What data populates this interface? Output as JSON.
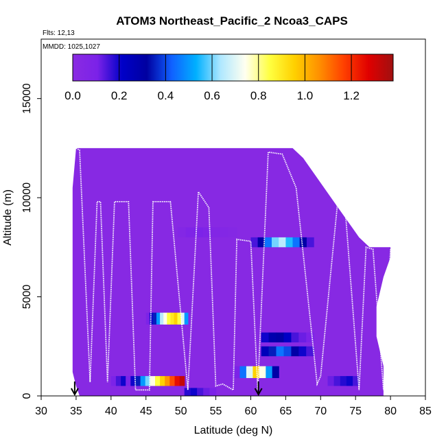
{
  "chart_data": {
    "type": "heatmap",
    "title": "ATOM3 Northeast_Pacific_2 Ncoa3_CAPS",
    "flights_label": "Flts: 12,13",
    "dates_label": "MMDD: 1025,1027",
    "xlabel": "Latitude (deg N)",
    "ylabel": "Altitude (m)",
    "xlim": [
      30,
      85
    ],
    "ylim": [
      0,
      18000
    ],
    "xticks": [
      30,
      35,
      40,
      45,
      50,
      55,
      60,
      65,
      70,
      75,
      80,
      85
    ],
    "yticks": [
      0,
      5000,
      10000,
      15000
    ],
    "colorbar": {
      "range": [
        0,
        1.38
      ],
      "ticks": [
        "0.0",
        "0.2",
        "0.4",
        "0.6",
        "0.8",
        "1.0",
        "1.2"
      ],
      "tick_values": [
        0,
        0.2,
        0.4,
        0.6,
        0.8,
        1.0,
        1.2
      ],
      "colors": [
        "#8a2be2",
        "#7b22e8",
        "#0000c8",
        "#0000a0",
        "#1060ff",
        "#00b0ff",
        "#b0e8ff",
        "#fffff0",
        "#ffff40",
        "#ffd000",
        "#ff9000",
        "#ff4000",
        "#e00000",
        "#a01010"
      ]
    },
    "background_value": 0.02,
    "envelope": [
      [
        35.0,
        12500
      ],
      [
        39.0,
        12500
      ],
      [
        39.0,
        12500
      ],
      [
        43.0,
        12500
      ],
      [
        47.0,
        12500
      ],
      [
        51.0,
        12500
      ],
      [
        55.0,
        12500
      ],
      [
        58.0,
        12500
      ],
      [
        62.0,
        12500
      ],
      [
        66.0,
        12500
      ],
      [
        67.5,
        12000
      ],
      [
        68.5,
        11500
      ],
      [
        69.5,
        11000
      ],
      [
        70.5,
        10500
      ],
      [
        71.5,
        10000
      ],
      [
        72.5,
        9500
      ],
      [
        73.5,
        9000
      ],
      [
        74.5,
        8500
      ],
      [
        75.5,
        8000
      ],
      [
        77.0,
        7500
      ],
      [
        80.0,
        7500
      ],
      [
        80.0,
        7000
      ],
      [
        79.0,
        6000
      ],
      [
        78.0,
        4500
      ],
      [
        78.0,
        3000
      ],
      [
        79.0,
        1500
      ],
      [
        79.0,
        0
      ],
      [
        35.5,
        0
      ],
      [
        35.0,
        500
      ],
      [
        34.5,
        1200
      ],
      [
        34.5,
        10500
      ]
    ],
    "features": [
      {
        "lat": [
          45.0,
          51.0
        ],
        "alt": [
          3600,
          4200
        ],
        "values": [
          0.1,
          0.2,
          0.35,
          0.5,
          0.65,
          0.75,
          0.85,
          0.9,
          0.95,
          0.85,
          0.7,
          0.5
        ]
      },
      {
        "lat": [
          40.0,
          50.5
        ],
        "alt": [
          500,
          1000
        ],
        "values": [
          0.1,
          0.15,
          0.2,
          0.1,
          0.2,
          0.35,
          0.5,
          0.6,
          0.75,
          0.85,
          0.95,
          1.05,
          1.15,
          1.25,
          1.32
        ]
      },
      {
        "lat": [
          60.0,
          69.0
        ],
        "alt": [
          7500,
          8000
        ],
        "values": [
          0.15,
          0.3,
          0.45,
          0.6,
          0.65,
          0.55,
          0.45,
          0.3,
          0.15
        ]
      },
      {
        "lat": [
          57.5,
          64.0
        ],
        "alt": [
          900,
          1500
        ],
        "values": [
          0.1,
          0.45,
          0.7,
          0.95,
          0.75,
          0.5,
          0.3
        ]
      },
      {
        "lat": [
          61.5,
          69.0
        ],
        "alt": [
          2000,
          2500
        ],
        "values": [
          0.25,
          0.35,
          0.45,
          0.4,
          0.3,
          0.2,
          0.15
        ]
      },
      {
        "lat": [
          61.5,
          69.0
        ],
        "alt": [
          2700,
          3200
        ],
        "values": [
          0.2,
          0.28,
          0.3,
          0.22,
          0.15,
          0.12,
          0.1
        ]
      },
      {
        "lat": [
          50.5,
          55.0
        ],
        "alt": [
          0,
          400
        ],
        "values": [
          0.18,
          0.2,
          0.15,
          0.12,
          0.1
        ]
      },
      {
        "lat": [
          71.0,
          75.5
        ],
        "alt": [
          500,
          1000
        ],
        "values": [
          0.12,
          0.15,
          0.18,
          0.2,
          0.15
        ]
      },
      {
        "lat": [
          49.5,
          58.0
        ],
        "alt": [
          8000,
          8500
        ],
        "values": [
          0.05,
          0.08,
          0.1,
          0.08,
          0.06,
          0.05,
          0.04
        ]
      }
    ],
    "flight_track": [
      [
        35.0,
        12500
      ],
      [
        35.5,
        12400
      ],
      [
        37.0,
        700
      ],
      [
        38.0,
        9800
      ],
      [
        38.5,
        9800
      ],
      [
        39.5,
        700
      ],
      [
        40.5,
        9800
      ],
      [
        42.5,
        9800
      ],
      [
        43.5,
        300
      ],
      [
        45.5,
        300
      ],
      [
        46.0,
        9800
      ],
      [
        48.5,
        9800
      ],
      [
        51.0,
        300
      ],
      [
        52.5,
        10300
      ],
      [
        54.0,
        9500
      ],
      [
        55.0,
        500
      ],
      [
        56.0,
        600
      ],
      [
        57.5,
        300
      ],
      [
        58.0,
        7900
      ],
      [
        60.0,
        7800
      ],
      [
        61.0,
        300
      ],
      [
        62.5,
        12300
      ],
      [
        64.5,
        12200
      ],
      [
        66.5,
        10500
      ],
      [
        69.5,
        600
      ],
      [
        70.0,
        1000
      ],
      [
        72.5,
        10000
      ],
      [
        73.5,
        9500
      ],
      [
        75.5,
        300
      ],
      [
        76.5,
        7500
      ],
      [
        77.5,
        7400
      ],
      [
        79.0,
        300
      ],
      [
        80.0,
        7400
      ]
    ],
    "arrows_lat": [
      34.8,
      61.1
    ]
  }
}
